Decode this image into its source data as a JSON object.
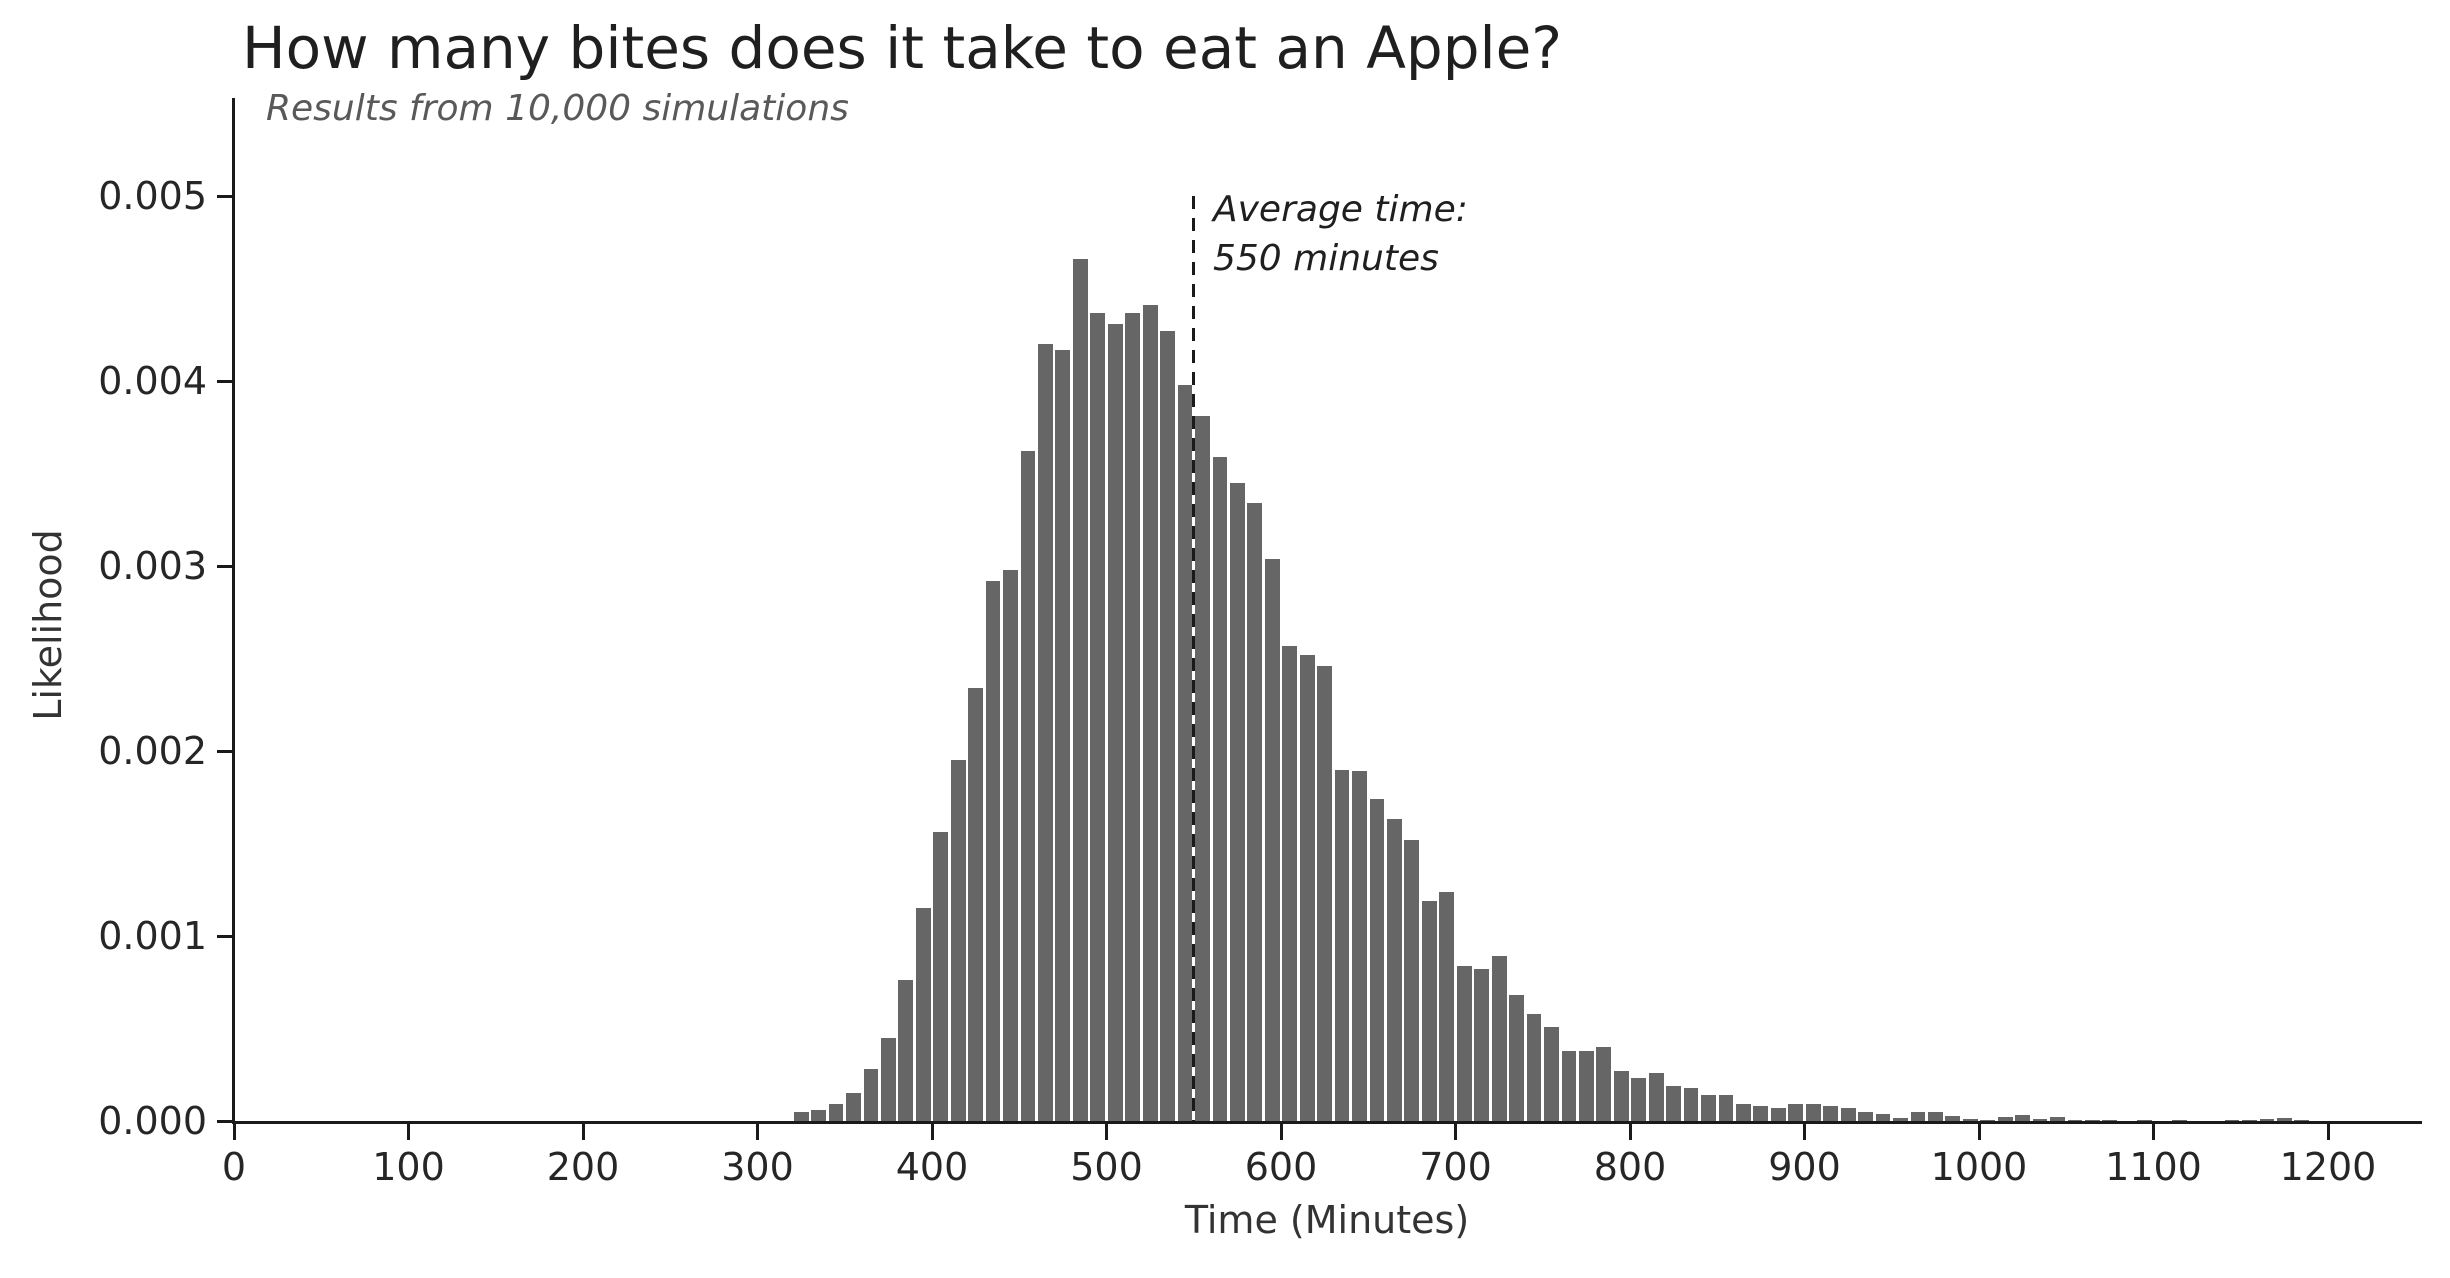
{
  "header": {
    "title": "How many bites does it take to eat an Apple?",
    "subtitle": "Results from 10,000 simulations"
  },
  "axes": {
    "x_label": "Time (Minutes)",
    "y_label": "Likelihood",
    "x_ticks": [
      "0",
      "100",
      "200",
      "300",
      "400",
      "500",
      "600",
      "700",
      "800",
      "900",
      "1000",
      "1100",
      "1200"
    ],
    "y_ticks": [
      "0.000",
      "0.001",
      "0.002",
      "0.003",
      "0.004",
      "0.005"
    ]
  },
  "annotation": {
    "line1": "Average time:",
    "line2": "550 minutes"
  },
  "colors": {
    "bar": "#666666",
    "axis": "#1a1a1a",
    "title_text": "#1f1f1f",
    "subtitle_text": "#595959",
    "tick_text": "#262626"
  },
  "chart_data": {
    "type": "bar",
    "subtype": "histogram",
    "title": "How many bites does it take to eat an Apple?",
    "subtitle": "Results from 10,000 simulations",
    "xlabel": "Time (Minutes)",
    "ylabel": "Likelihood",
    "grid": false,
    "legend_position": "none",
    "xlim": [
      0,
      1253
    ],
    "ylim": [
      0,
      0.0054
    ],
    "x_tick_values": [
      0,
      100,
      200,
      300,
      400,
      500,
      600,
      700,
      800,
      900,
      1000,
      1100,
      1200
    ],
    "y_tick_values": [
      0,
      0.001,
      0.002,
      0.003,
      0.004,
      0.005
    ],
    "bin_width": 10,
    "bar_color": "#666666",
    "mean_line": {
      "x": 550,
      "style": "dashed",
      "color": "#1a1a1a",
      "label": [
        "Average time:",
        "550 minutes"
      ]
    },
    "bin_starts": [
      320,
      330,
      340,
      350,
      360,
      370,
      380,
      390,
      400,
      410,
      420,
      430,
      440,
      450,
      460,
      470,
      480,
      490,
      500,
      510,
      520,
      530,
      540,
      550,
      560,
      570,
      580,
      590,
      600,
      610,
      620,
      630,
      640,
      650,
      660,
      670,
      680,
      690,
      700,
      710,
      720,
      730,
      740,
      750,
      760,
      770,
      780,
      790,
      800,
      810,
      820,
      830,
      840,
      850,
      860,
      870,
      880,
      890,
      900,
      910,
      920,
      930,
      940,
      950,
      960,
      970,
      980,
      990,
      1000,
      1010,
      1020,
      1030,
      1040,
      1050,
      1060,
      1070,
      1080,
      1090,
      1100,
      1110,
      1120,
      1130,
      1140,
      1150,
      1160,
      1170,
      1180,
      1190
    ],
    "densities": [
      5e-05,
      6e-05,
      9e-05,
      0.00015,
      0.00028,
      0.00045,
      0.00076,
      0.00115,
      0.00156,
      0.00195,
      0.00234,
      0.00292,
      0.00298,
      0.00362,
      0.0042,
      0.00417,
      0.00466,
      0.00437,
      0.00431,
      0.00437,
      0.00441,
      0.00427,
      0.00398,
      0.00381,
      0.00359,
      0.00345,
      0.00334,
      0.00304,
      0.00257,
      0.00252,
      0.00246,
      0.0019,
      0.00189,
      0.00174,
      0.00163,
      0.00152,
      0.00119,
      0.00124,
      0.00084,
      0.00082,
      0.00089,
      0.00068,
      0.00058,
      0.00051,
      0.00038,
      0.00038,
      0.0004,
      0.00027,
      0.00023,
      0.00026,
      0.00019,
      0.00018,
      0.00014,
      0.00014,
      9e-05,
      8e-05,
      7e-05,
      9e-05,
      9e-05,
      8e-05,
      7e-05,
      5e-05,
      4e-05,
      1.5e-05,
      4.7e-05,
      5e-05,
      2.5e-05,
      1e-05,
      8e-06,
      2.3e-05,
      3.3e-05,
      1e-05,
      2e-05,
      5e-06,
      5e-06,
      7e-06,
      0,
      3e-06,
      0,
      3e-06,
      0,
      0,
      3e-06,
      7e-06,
      1e-05,
      1.7e-05,
      3e-06,
      0
    ]
  }
}
